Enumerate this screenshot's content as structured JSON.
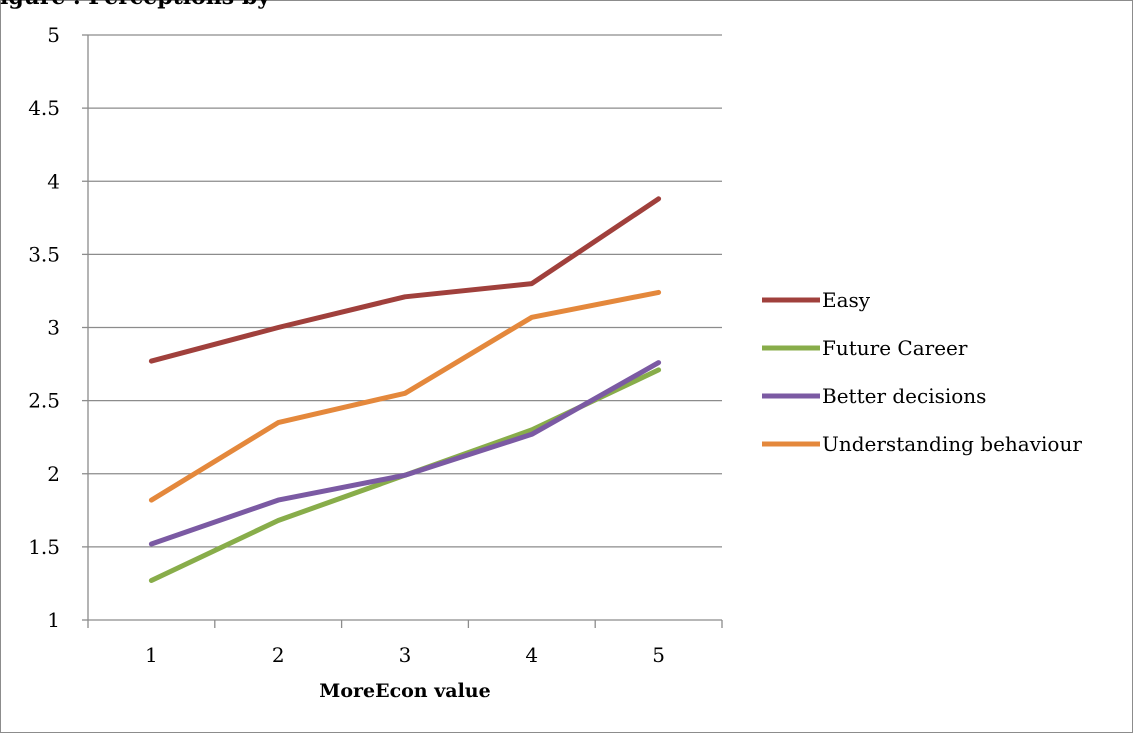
{
  "chart_data": {
    "type": "line",
    "title_fragment": "igure  . Perceptions by",
    "categories": [
      "1",
      "2",
      "3",
      "4",
      "5"
    ],
    "xlabel": "MoreEcon value",
    "ylabel": "",
    "ylim": [
      1,
      5
    ],
    "yticks": [
      "1",
      "1.5",
      "2",
      "2.5",
      "3",
      "3.5",
      "4",
      "4.5",
      "5"
    ],
    "grid": true,
    "legend_position": "right",
    "series": [
      {
        "name": "Easy",
        "color": "#a0403c",
        "values": [
          2.77,
          3.0,
          3.21,
          3.3,
          3.88
        ]
      },
      {
        "name": "Future Career",
        "color": "#88ad4a",
        "values": [
          1.27,
          1.68,
          1.99,
          2.3,
          2.71
        ]
      },
      {
        "name": "Better decisions",
        "color": "#7b5aa3",
        "values": [
          1.52,
          1.82,
          1.99,
          2.27,
          2.76
        ]
      },
      {
        "name": "Understanding behaviour",
        "color": "#e4883c",
        "values": [
          1.82,
          2.35,
          2.55,
          3.07,
          3.24
        ]
      }
    ]
  }
}
